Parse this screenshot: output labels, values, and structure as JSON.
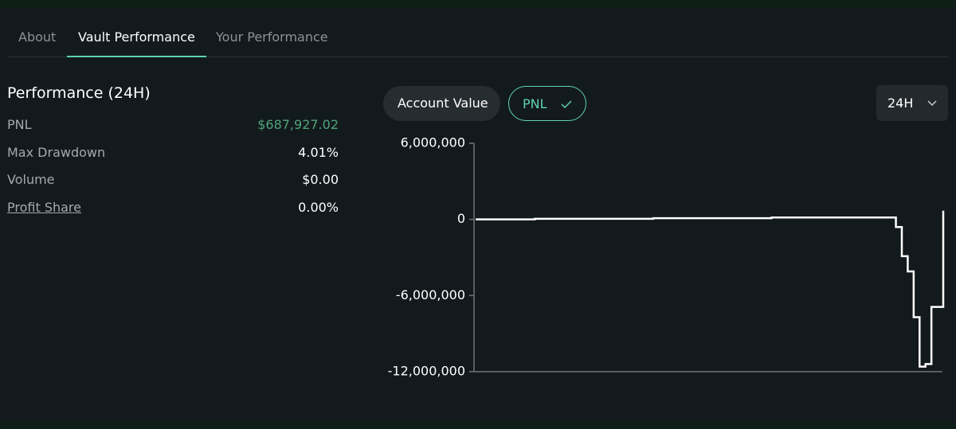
{
  "tabs": [
    {
      "label": "About"
    },
    {
      "label": "Vault Performance",
      "active": true
    },
    {
      "label": "Your Performance"
    }
  ],
  "performance": {
    "title": "Performance (24H)",
    "stats": [
      {
        "label": "PNL",
        "value": "$687,927.02",
        "highlight": true
      },
      {
        "label": "Max Drawdown",
        "value": "4.01%"
      },
      {
        "label": "Volume",
        "value": "$0.00"
      },
      {
        "label": "Profit Share",
        "value": "0.00%",
        "underline": true
      }
    ]
  },
  "toggles": [
    {
      "label": "Account Value"
    },
    {
      "label": "PNL",
      "selected": true
    }
  ],
  "range": "24H",
  "chart_data": {
    "type": "line",
    "color": "#ffffff",
    "values": [
      0,
      0,
      0,
      0,
      0,
      0,
      0,
      0,
      0,
      0,
      50000,
      50000,
      50000,
      50000,
      50000,
      50000,
      50000,
      50000,
      50000,
      50000,
      50000,
      50000,
      50000,
      50000,
      50000,
      50000,
      50000,
      50000,
      50000,
      50000,
      100000,
      100000,
      100000,
      100000,
      100000,
      100000,
      100000,
      100000,
      100000,
      100000,
      100000,
      100000,
      100000,
      100000,
      100000,
      100000,
      100000,
      100000,
      100000,
      100000,
      150000,
      150000,
      150000,
      150000,
      150000,
      150000,
      150000,
      150000,
      150000,
      150000,
      150000,
      150000,
      150000,
      150000,
      150000,
      150000,
      150000,
      150000,
      150000,
      150000,
      150000,
      -600000,
      -2900000,
      -4100000,
      -7700000,
      -11600000,
      -11400000,
      -6900000,
      -6900000,
      687927
    ],
    "ylim": [
      -12000000,
      6000000
    ],
    "yticks": [
      {
        "value": -12000000,
        "label": "-12,000,000"
      },
      {
        "value": -6000000,
        "label": "-6,000,000"
      },
      0,
      {
        "value": 6000000,
        "label": "6,000,000"
      }
    ]
  }
}
